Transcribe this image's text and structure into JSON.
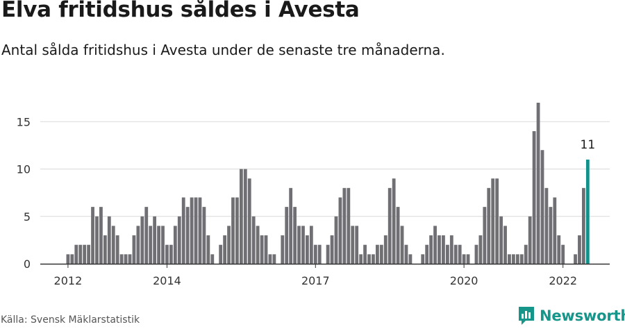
{
  "header": {
    "title": "Elva fritidshus såldes i Avesta",
    "subtitle": "Antal sålda fritidshus i Avesta under de senaste tre månaderna."
  },
  "footer": {
    "source": "Källa: Svensk Mäklarstatistik",
    "brand": "Newsworthy"
  },
  "colors": {
    "bar": "#6f6f74",
    "highlight": "#11918a",
    "grid": "#d9d9d9",
    "axis": "#333333",
    "brand": "#16958a"
  },
  "chart_data": {
    "type": "bar",
    "title": "Elva fritidshus såldes i Avesta",
    "ylim": [
      0,
      17
    ],
    "yticks": [
      0,
      5,
      10,
      15
    ],
    "xtick_labels": [
      {
        "label": "2012",
        "index": 0
      },
      {
        "label": "2014",
        "index": 24
      },
      {
        "label": "2017",
        "index": 60
      },
      {
        "label": "2020",
        "index": 96
      },
      {
        "label": "2022",
        "index": 120
      }
    ],
    "grid": true,
    "highlight_label": "11",
    "series": [
      {
        "values": [
          1,
          1,
          2,
          2,
          2,
          2,
          6,
          5,
          6,
          3,
          5,
          4,
          3,
          1,
          1,
          1,
          3,
          4,
          5,
          6,
          4,
          5,
          4,
          4,
          2,
          2,
          4,
          5,
          7,
          6,
          7,
          7,
          7,
          6,
          3,
          1,
          0,
          2,
          3,
          4,
          7,
          7,
          10,
          10,
          9,
          5,
          4,
          3,
          3,
          1,
          1,
          0,
          3,
          6,
          8,
          6,
          4,
          4,
          3,
          4,
          2,
          2,
          0,
          2,
          3,
          5,
          7,
          8,
          8,
          4,
          4,
          1,
          2,
          1,
          1,
          2,
          2,
          3,
          8,
          9,
          6,
          4,
          2,
          1,
          0,
          0,
          1,
          2,
          3,
          4,
          3,
          3,
          2,
          3,
          2,
          2,
          1,
          1,
          0,
          2,
          3,
          6,
          8,
          9,
          9,
          5,
          4,
          1,
          1,
          1,
          1,
          2,
          5,
          14,
          17,
          12,
          8,
          6,
          7,
          3,
          2,
          0,
          0,
          1,
          3,
          8,
          11
        ]
      }
    ]
  }
}
